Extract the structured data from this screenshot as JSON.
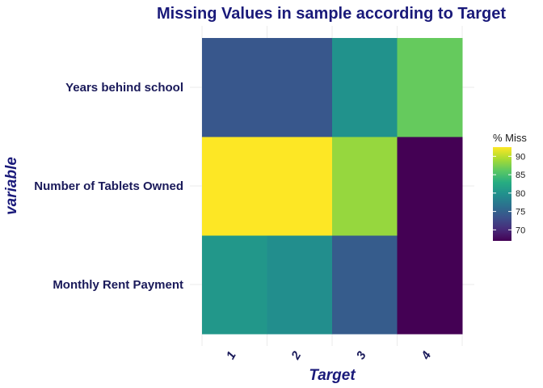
{
  "chart_data": {
    "type": "heatmap",
    "title": "Missing Values in sample according to Target",
    "xlabel": "Target",
    "ylabel": "variable",
    "x_categories": [
      "1",
      "2",
      "3",
      "4"
    ],
    "y_categories": [
      "Monthly Rent Payment",
      "Number of Tablets Owned",
      "Years behind school"
    ],
    "values": [
      [
        80.5,
        79.5,
        74.5,
        66.0
      ],
      [
        92.5,
        92.5,
        88.5,
        66.0
      ],
      [
        74.0,
        74.0,
        80.0,
        86.5
      ]
    ],
    "legend": {
      "title": "% Miss",
      "ticks": [
        70,
        75,
        80,
        85,
        90
      ],
      "range": [
        67,
        92.5
      ],
      "position": "right"
    },
    "colormap": "viridis",
    "grid": true
  }
}
